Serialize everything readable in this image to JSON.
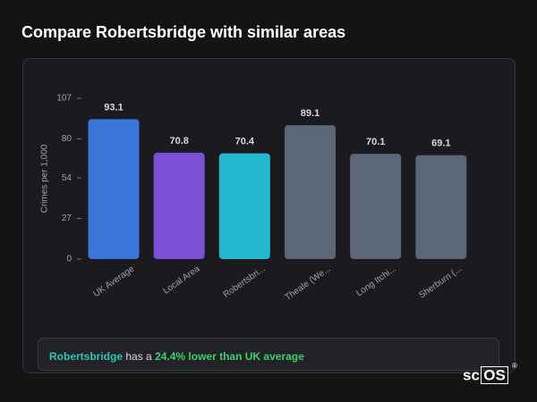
{
  "title": "Compare Robertsbridge with similar areas",
  "chart_data": {
    "type": "bar",
    "y_label": "Crimes per 1,000",
    "categories": [
      "UK Average",
      "Local Area",
      "Robertsbri...",
      "Theale (We...",
      "Long Itchi...",
      "Sherburn (..."
    ],
    "values": [
      93.1,
      70.8,
      70.4,
      89.1,
      70.1,
      69.1
    ],
    "colors": [
      "#3b76da",
      "#7b4fd6",
      "#22b8cf",
      "#5b6678",
      "#5b6678",
      "#5b6678"
    ],
    "ylim": [
      0,
      107
    ],
    "yticks": [
      0,
      27,
      54,
      80,
      107
    ],
    "grid": false
  },
  "callout": {
    "place": "Robertsbridge",
    "text": "has a",
    "highlight": "24.4% lower than UK average"
  },
  "logo": {
    "prefix": "sc",
    "boxed": "OS",
    "mark": "®"
  }
}
